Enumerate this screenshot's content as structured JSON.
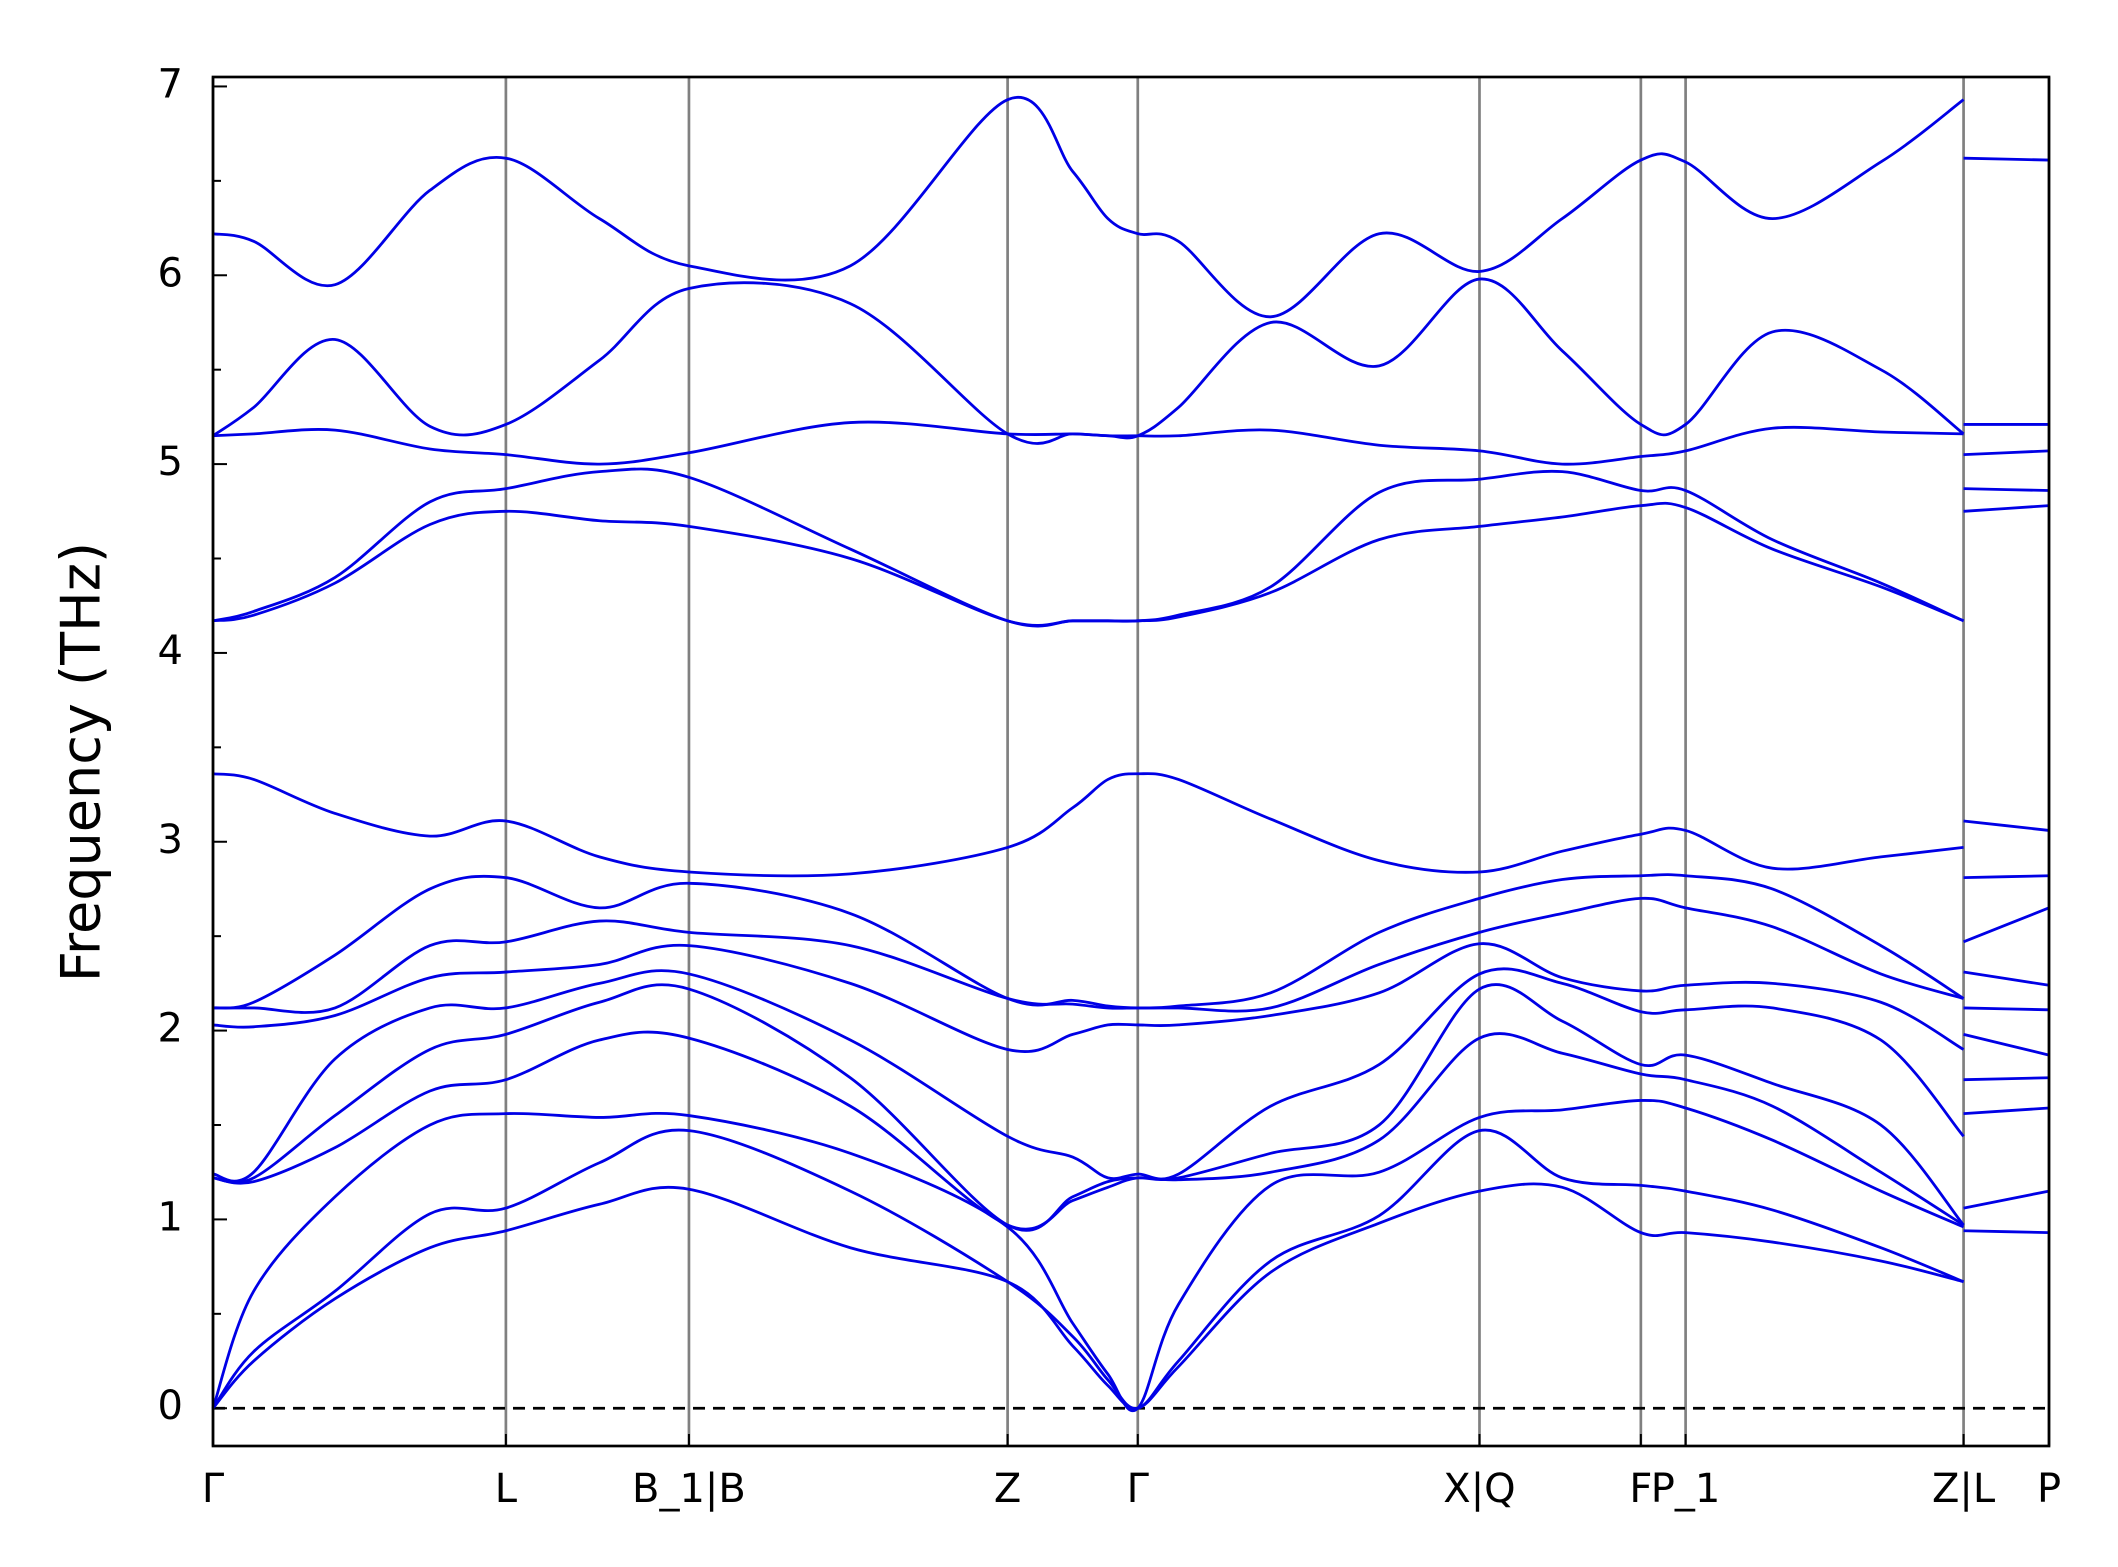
{
  "chart_data": {
    "type": "line",
    "ylabel": "Frequency (THz)",
    "color": "#0000e6",
    "xlim": [
      0,
      1354
    ],
    "ylim": [
      -0.2,
      7.05
    ],
    "xticks": [
      {
        "value": 0,
        "label": "Γ"
      },
      {
        "value": 216,
        "label": "L"
      },
      {
        "value": 351,
        "label": "B_1|B"
      },
      {
        "value": 586,
        "label": "Z"
      },
      {
        "value": 682,
        "label": "Γ"
      },
      {
        "value": 934,
        "label": "X|Q"
      },
      {
        "value": 1053,
        "label": "F"
      },
      {
        "value": 1086,
        "label": "P_1"
      },
      {
        "value": 1291,
        "label": "Z|L"
      },
      {
        "value": 1354,
        "label": "P"
      }
    ],
    "yticks": [
      0,
      1,
      2,
      3,
      4,
      5,
      6,
      7
    ],
    "yminorticks": [
      0.5,
      1.5,
      2.5,
      3.5,
      4.5,
      5.5,
      6.5
    ],
    "vertical_lines": true,
    "reference_line": {
      "y": 0,
      "style": "dashed"
    },
    "x": [
      0,
      30,
      90,
      160,
      216,
      285,
      351,
      470,
      586,
      634,
      660,
      682,
      712,
      780,
      860,
      934,
      995,
      1053,
      1086,
      1150,
      1230,
      1291,
      1291,
      1291,
      1354
    ],
    "series": [
      {
        "values": [
          0,
          0.25,
          0.58,
          0.85,
          0.94,
          1.08,
          1.16,
          0.85,
          0.67,
          0.33,
          0.12,
          0,
          0.22,
          0.72,
          0.98,
          1.15,
          1.17,
          0.93,
          0.93,
          0.88,
          0.78,
          0.67,
          null,
          0.94,
          0.93
        ]
      },
      {
        "values": [
          0,
          0.3,
          0.62,
          1.03,
          1.06,
          1.3,
          1.47,
          1.15,
          0.67,
          0.38,
          0.15,
          0,
          0.25,
          0.78,
          1.02,
          1.47,
          1.22,
          1.18,
          1.15,
          1.05,
          0.85,
          0.67,
          null,
          1.06,
          1.15
        ]
      },
      {
        "values": [
          0,
          0.62,
          1.12,
          1.5,
          1.56,
          1.54,
          1.55,
          1.35,
          0.96,
          0.45,
          0.18,
          0,
          0.55,
          1.18,
          1.25,
          1.54,
          1.58,
          1.63,
          1.59,
          1.42,
          1.15,
          0.96,
          null,
          1.56,
          1.59
        ]
      },
      {
        "values": [
          1.22,
          1.2,
          1.38,
          1.68,
          1.74,
          1.95,
          1.96,
          1.6,
          0.97,
          1.1,
          1.17,
          1.22,
          1.21,
          1.25,
          1.42,
          1.96,
          1.88,
          1.77,
          1.74,
          1.6,
          1.25,
          0.97,
          null,
          1.74,
          1.75
        ]
      },
      {
        "values": [
          1.22,
          1.22,
          1.55,
          1.9,
          1.98,
          2.15,
          2.22,
          1.75,
          0.97,
          1.12,
          1.2,
          1.22,
          1.22,
          1.35,
          1.5,
          2.22,
          2.05,
          1.82,
          1.87,
          1.72,
          1.5,
          0.97,
          null,
          1.98,
          1.87
        ]
      },
      {
        "values": [
          1.24,
          1.25,
          1.85,
          2.12,
          2.12,
          2.25,
          2.3,
          1.95,
          1.44,
          1.33,
          1.22,
          1.24,
          1.24,
          1.6,
          1.82,
          2.3,
          2.25,
          2.1,
          2.11,
          2.12,
          1.95,
          1.44,
          null,
          2.12,
          2.11
        ]
      },
      {
        "values": [
          2.03,
          2.02,
          2.08,
          2.28,
          2.31,
          2.35,
          2.45,
          2.25,
          1.9,
          1.98,
          2.03,
          2.03,
          2.03,
          2.08,
          2.2,
          2.46,
          2.28,
          2.21,
          2.24,
          2.25,
          2.15,
          1.9,
          null,
          2.31,
          2.24
        ]
      },
      {
        "values": [
          2.12,
          2.12,
          2.12,
          2.45,
          2.47,
          2.58,
          2.52,
          2.45,
          2.17,
          2.14,
          2.12,
          2.12,
          2.12,
          2.12,
          2.35,
          2.52,
          2.62,
          2.7,
          2.65,
          2.55,
          2.3,
          2.17,
          null,
          2.47,
          2.65
        ]
      },
      {
        "values": [
          2.12,
          2.15,
          2.4,
          2.75,
          2.81,
          2.65,
          2.78,
          2.62,
          2.17,
          2.16,
          2.13,
          2.12,
          2.13,
          2.2,
          2.52,
          2.7,
          2.8,
          2.82,
          2.82,
          2.75,
          2.45,
          2.17,
          null,
          2.81,
          2.82
        ]
      },
      {
        "values": [
          3.36,
          3.33,
          3.15,
          3.03,
          3.11,
          2.92,
          2.84,
          2.83,
          2.97,
          3.18,
          3.33,
          3.36,
          3.33,
          3.12,
          2.9,
          2.84,
          2.95,
          3.04,
          3.06,
          2.86,
          2.92,
          2.97,
          null,
          3.11,
          3.06
        ]
      },
      {
        "values": [
          4.17,
          4.2,
          4.37,
          4.68,
          4.75,
          4.7,
          4.67,
          4.5,
          4.17,
          4.17,
          4.17,
          4.17,
          4.19,
          4.32,
          4.6,
          4.67,
          4.72,
          4.78,
          4.77,
          4.55,
          4.35,
          4.17,
          null,
          4.75,
          4.78
        ]
      },
      {
        "values": [
          4.17,
          4.22,
          4.4,
          4.8,
          4.87,
          4.96,
          4.93,
          4.55,
          4.17,
          4.17,
          4.17,
          4.17,
          4.2,
          4.35,
          4.85,
          4.92,
          4.96,
          4.86,
          4.86,
          4.6,
          4.37,
          4.17,
          null,
          4.87,
          4.86
        ]
      },
      {
        "values": [
          5.15,
          5.16,
          5.18,
          5.08,
          5.05,
          5.0,
          5.06,
          5.22,
          5.16,
          5.16,
          5.15,
          5.15,
          5.15,
          5.18,
          5.1,
          5.07,
          5.0,
          5.04,
          5.07,
          5.19,
          5.17,
          5.16,
          null,
          5.05,
          5.07
        ]
      },
      {
        "values": [
          5.15,
          5.3,
          5.66,
          5.2,
          5.21,
          5.55,
          5.93,
          5.85,
          5.16,
          5.16,
          5.15,
          5.15,
          5.3,
          5.75,
          5.52,
          5.98,
          5.6,
          5.21,
          5.21,
          5.7,
          5.5,
          5.16,
          null,
          5.21,
          5.21
        ]
      },
      {
        "values": [
          6.22,
          6.18,
          5.95,
          6.45,
          6.62,
          6.3,
          6.05,
          6.05,
          6.93,
          6.55,
          6.3,
          6.22,
          6.18,
          5.78,
          6.22,
          6.02,
          6.3,
          6.61,
          6.6,
          6.3,
          6.6,
          6.93,
          null,
          6.62,
          6.61
        ]
      }
    ]
  }
}
